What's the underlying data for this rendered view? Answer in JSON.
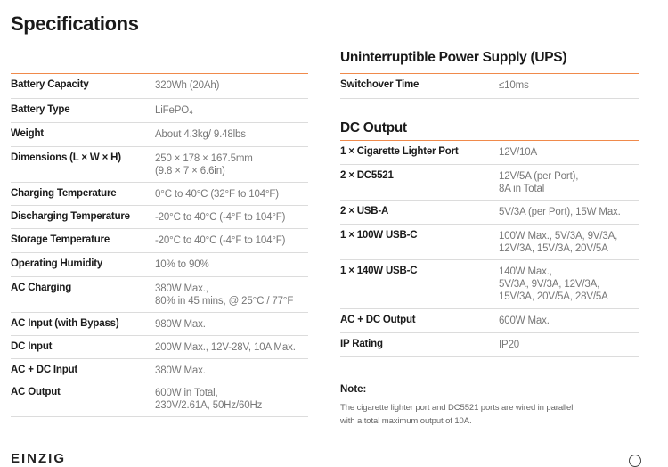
{
  "title": "Specifications",
  "left_table": [
    {
      "label": "Battery Capacity",
      "value": "320Wh (20Ah)"
    },
    {
      "label": "Battery Type",
      "value": "LiFePO₄"
    },
    {
      "label": "Weight",
      "value": "About 4.3kg/ 9.48lbs"
    },
    {
      "label": "Dimensions (L × W × H)",
      "value": "250 × 178 × 167.5mm",
      "value2": "(9.8 × 7 × 6.6in)"
    },
    {
      "label": "Charging Temperature",
      "value": "0°C to 40°C (32°F to 104°F)"
    },
    {
      "label": "Discharging Temperature",
      "value": "-20°C to 40°C (-4°F to 104°F)"
    },
    {
      "label": "Storage Temperature",
      "value": "-20°C to 40°C (-4°F to 104°F)"
    },
    {
      "label": "Operating Humidity",
      "value": "10% to 90%"
    },
    {
      "label": "AC Charging",
      "value": "380W Max.,",
      "value2": "80% in 45 mins, @ 25°C / 77°F"
    },
    {
      "label": "AC Input (with Bypass)",
      "value": "980W Max."
    },
    {
      "label": "DC Input",
      "value": "200W Max., 12V-28V, 10A Max."
    },
    {
      "label": "AC + DC Input",
      "value": "380W Max."
    },
    {
      "label": "AC Output",
      "value": "600W in Total,",
      "value2": "230V/2.61A, 50Hz/60Hz"
    }
  ],
  "ups": {
    "title": "Uninterruptible Power Supply (UPS)",
    "rows": [
      {
        "label": "Switchover Time",
        "value": "≤10ms"
      }
    ]
  },
  "dc_output": {
    "title": "DC Output",
    "rows": [
      {
        "label": "1 × Cigarette Lighter Port",
        "value": "12V/10A"
      },
      {
        "label": "2 × DC5521",
        "value": "12V/5A (per Port),",
        "value2": "8A in Total"
      },
      {
        "label": "2 × USB-A",
        "value": "5V/3A (per Port), 15W Max."
      },
      {
        "label": "1 × 100W USB-C",
        "value": "100W Max., 5V/3A, 9V/3A,",
        "value2": "12V/3A, 15V/3A, 20V/5A"
      },
      {
        "label": "1 × 140W USB-C",
        "value": "140W Max.,",
        "value2": "5V/3A, 9V/3A, 12V/3A,",
        "value3": "15V/3A, 20V/5A, 28V/5A"
      },
      {
        "label": "AC + DC Output",
        "value": "600W Max."
      },
      {
        "label": "IP Rating",
        "value": "IP20"
      }
    ]
  },
  "note": {
    "title": "Note:",
    "line1": "The cigarette lighter port and DC5521 ports are wired in parallel",
    "line2": "with a total maximum output of 10A."
  },
  "footer": {
    "brand": "EINZIG"
  }
}
